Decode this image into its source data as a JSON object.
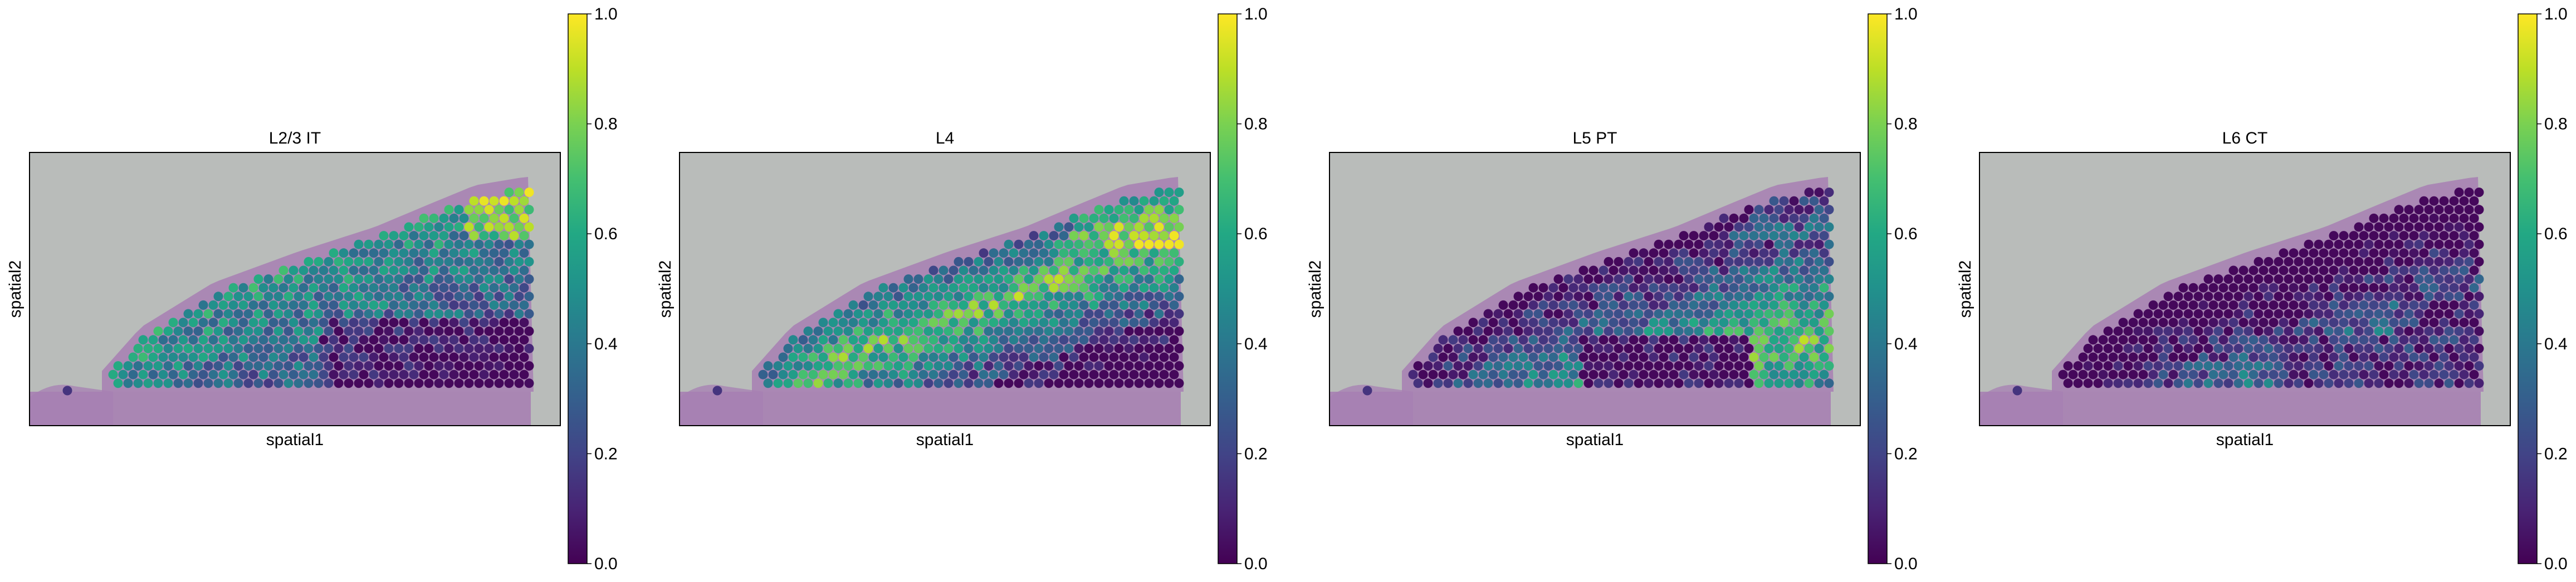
{
  "chart_data": [
    {
      "type": "scatter",
      "title": "L2/3 IT",
      "xlabel": "spatial1",
      "ylabel": "spatial2",
      "colorbar": {
        "range": [
          0,
          1
        ],
        "ticks": [
          "0.0",
          "0.2",
          "0.4",
          "0.6",
          "0.8",
          "1.0"
        ],
        "colormap": "viridis"
      },
      "pattern": "upper cortical layer (L2/3) enriched, moderate values throughout, low in lower-right region"
    },
    {
      "type": "scatter",
      "title": "L4",
      "xlabel": "spatial1",
      "ylabel": "spatial2",
      "colorbar": {
        "range": [
          0,
          1
        ],
        "ticks": [
          "0.0",
          "0.2",
          "0.4",
          "0.6",
          "0.8",
          "1.0"
        ],
        "colormap": "viridis"
      },
      "pattern": "band just below the pial surface with highest values near top-right"
    },
    {
      "type": "scatter",
      "title": "L5 PT",
      "xlabel": "spatial1",
      "ylabel": "spatial2",
      "colorbar": {
        "range": [
          0,
          1
        ],
        "ticks": [
          "0.0",
          "0.2",
          "0.4",
          "0.6",
          "0.8",
          "1.0"
        ],
        "colormap": "viridis"
      },
      "pattern": "deep diagonal band enriched, very low in bottom-right patch"
    },
    {
      "type": "scatter",
      "title": "L6 CT",
      "xlabel": "spatial1",
      "ylabel": "spatial2",
      "colorbar": {
        "range": [
          0,
          1
        ],
        "ticks": [
          "0.0",
          "0.2",
          "0.4",
          "0.6",
          "0.8",
          "1.0"
        ],
        "colormap": "viridis"
      },
      "pattern": "deepest diagonal band, low values in lower-right region"
    }
  ],
  "colors": {
    "tissue_background": "#b9bcba",
    "tissue_stain": "#a77fb3",
    "viridis_low": "#440154",
    "viridis_mid": "#21918c",
    "viridis_high": "#fde725"
  }
}
